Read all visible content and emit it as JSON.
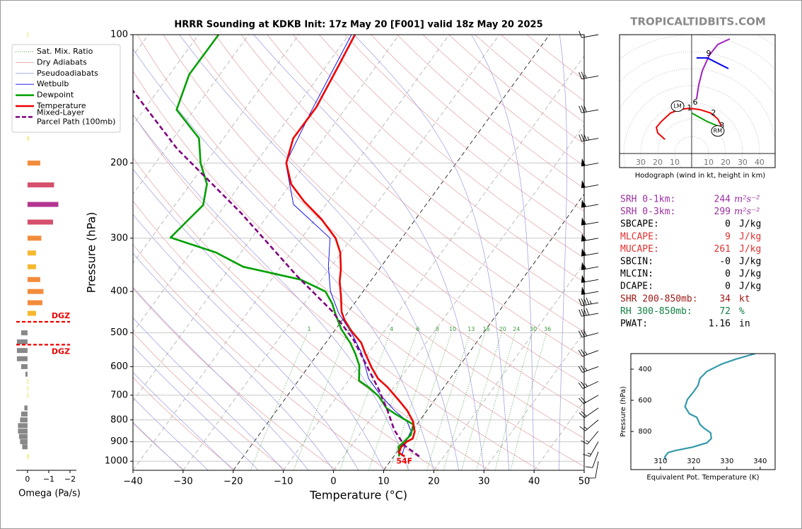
{
  "site": "TROPICALTIDBITS.COM",
  "chart_data": [
    {
      "type": "skewt",
      "title": "HRRR Sounding at KDKB Init: 17z May 20 [F001] valid 18z May 20 2025",
      "x_label": "Temperature (°C)",
      "y_label": "Pressure (hPa)",
      "xlim": [
        -40,
        50
      ],
      "ylim": [
        1050,
        100
      ],
      "log_y": true,
      "xticks": [
        {
          "value": -40,
          "label": "−40"
        },
        {
          "value": -30,
          "label": "−30"
        },
        {
          "value": -20,
          "label": "−20"
        },
        {
          "value": -10,
          "label": "−10"
        },
        0,
        10,
        20,
        30,
        40,
        50
      ],
      "yticks": [
        100,
        200,
        300,
        400,
        500,
        600,
        700,
        800,
        900,
        1000
      ],
      "reference_lines": [
        {
          "name": "Sat. Mix. Ratio",
          "color": "#3a9a3a",
          "style": "dotted"
        },
        {
          "name": "Dry Adiabats",
          "color": "#e3a0a0",
          "style": "solid"
        },
        {
          "name": "Pseudoadiabats",
          "color": "#9a9ae0",
          "style": "solid"
        }
      ],
      "mixing_ratios": [
        1,
        2,
        4,
        6,
        8,
        10,
        13,
        16,
        20,
        24,
        30,
        36
      ],
      "series": [
        {
          "name": "Wetbulb",
          "color": "#0000ee",
          "style": "thin",
          "pressure": [
            100,
            150,
            200,
            250,
            300,
            350,
            400,
            450,
            500,
            560,
            640,
            700,
            760,
            805,
            850,
            900,
            974
          ],
          "values": [
            -59.5,
            -56.5,
            -54,
            -46.5,
            -34.3,
            -30.5,
            -26.5,
            -21.7,
            -16.3,
            -11.2,
            -6.3,
            -1.5,
            3.5,
            7.5,
            9.8,
            10.3,
            11.6
          ]
        },
        {
          "name": "Dewpoint",
          "color": "#00a000",
          "style": "solid",
          "pressure": [
            100,
            124,
            150,
            175,
            200,
            224,
            251,
            276,
            299,
            324,
            350,
            375,
            400,
            428,
            450,
            490,
            528,
            560,
            597,
            647,
            672,
            704,
            751,
            774,
            820,
            868,
            926,
            974
          ],
          "values": [
            -86,
            -86.1,
            -83.5,
            -74.9,
            -71,
            -66.7,
            -64.4,
            -65.4,
            -66.2,
            -55,
            -47.5,
            -34.2,
            -27.5,
            -24.3,
            -22.4,
            -18.9,
            -15.1,
            -12.5,
            -10,
            -7.9,
            -4.9,
            -1.7,
            1.6,
            4.1,
            9.3,
            10.3,
            9.6,
            11.1
          ]
        },
        {
          "name": "Temperature",
          "color": "#ee0000",
          "style": "solid",
          "pressure": [
            100,
            121,
            148,
            175,
            200,
            224,
            246,
            271,
            300,
            324,
            354,
            379,
            412,
            447,
            466,
            495,
            528,
            560,
            604,
            640,
            670,
            717,
            760,
            805,
            852,
            885,
            899,
            926,
            955,
            974
          ],
          "values": [
            -58.8,
            -57.4,
            -56,
            -56.1,
            -53.9,
            -49.9,
            -44.8,
            -38.7,
            -33.2,
            -30.2,
            -27.7,
            -26.1,
            -23.6,
            -21.3,
            -19.6,
            -16.6,
            -12.9,
            -10.5,
            -7.2,
            -4.4,
            -1.3,
            2.7,
            6,
            8.7,
            10.6,
            11.2,
            10.5,
            10.1,
            10.5,
            12.2
          ]
        },
        {
          "name": "Mixed-Layer Parcel Path (100mb)",
          "color": "#800080",
          "style": "dashed",
          "pressure": [
            974,
            919,
            845,
            760,
            677,
            604,
            519,
            445,
            368,
            261,
            185,
            135
          ],
          "values": [
            15.1,
            10.6,
            6.3,
            2.1,
            -2.8,
            -8,
            -14.9,
            -23.3,
            -35.4,
            -55.9,
            -77.8,
            -95.1
          ]
        }
      ],
      "surface_label": "54F",
      "winds": {
        "pressure": [
          100,
          125,
          150,
          175,
          200,
          225,
          250,
          275,
          300,
          325,
          350,
          375,
          400,
          425,
          450,
          500,
          550,
          600,
          650,
          700,
          750,
          800,
          850,
          900,
          950,
          1000
        ],
        "speed": [
          10,
          25,
          30,
          35,
          50,
          50,
          55,
          55,
          55,
          55,
          55,
          50,
          50,
          45,
          40,
          30,
          25,
          25,
          25,
          20,
          20,
          15,
          15,
          15,
          10,
          10
        ],
        "direction": [
          260,
          260,
          260,
          260,
          260,
          260,
          260,
          260,
          260,
          260,
          260,
          260,
          260,
          260,
          260,
          255,
          250,
          250,
          245,
          240,
          235,
          230,
          220,
          210,
          200,
          190
        ]
      }
    },
    {
      "type": "omega",
      "x_label": "Omega (Pa/s)",
      "xlim": [
        0.53,
        -2.3
      ],
      "ylim": [
        1050,
        100
      ],
      "xticks": [
        0,
        {
          "value": -1,
          "label": "−1"
        },
        {
          "value": -2,
          "label": "−2"
        }
      ],
      "pressure": [
        100,
        175,
        200,
        225,
        250,
        275,
        300,
        325,
        350,
        375,
        400,
        425,
        450,
        500,
        525,
        550,
        575,
        600,
        625,
        650,
        675,
        700,
        750,
        775,
        800,
        825,
        850,
        875,
        900,
        925,
        975
      ],
      "values": [
        -0.02,
        -0.05,
        -0.6,
        -1.25,
        -1.45,
        -1.2,
        -0.65,
        -0.4,
        -0.4,
        -0.6,
        -0.75,
        -0.7,
        -0.4,
        0.3,
        0.5,
        0.5,
        0.5,
        0.3,
        0.1,
        -0.03,
        -0.03,
        -0.03,
        0.15,
        0.3,
        0.35,
        0.45,
        0.45,
        0.4,
        0.35,
        0.25,
        -0.05
      ],
      "dgz": {
        "pressure": [
          471,
          533
        ],
        "label": "DGZ",
        "color": "#ee0000"
      }
    },
    {
      "type": "hodograph",
      "caption": "Hodograph (wind in kt, height in km)",
      "xlim": [
        -42.5,
        49.2
      ],
      "ylim": [
        -8.3,
        70
      ],
      "xticks": [
        {
          "value": -30,
          "label": "30"
        },
        {
          "value": -20,
          "label": "20"
        },
        {
          "value": -10,
          "label": "10"
        },
        10,
        20,
        30,
        40
      ],
      "segments": [
        {
          "color": "#ee0000",
          "u": [
            -15.8,
            -20,
            -20.8,
            -17.9,
            -12.5,
            -7.5,
            -1.3,
            5,
            11.3,
            15.4,
            17.5
          ],
          "v": [
            8.3,
            12.1,
            15.4,
            18.8,
            23.8,
            25.8,
            26.7,
            25.8,
            23.8,
            20.4,
            16.3
          ]
        },
        {
          "color": "#00a000",
          "u": [
            0,
            9.2,
            17.5
          ],
          "v": [
            23.8,
            18.8,
            15.4
          ]
        },
        {
          "color": "#a020c0",
          "u": [
            2.9,
            4.2,
            6.3,
            10.4,
            15.4,
            22.5
          ],
          "v": [
            32.1,
            40.4,
            48.8,
            57.9,
            64.2,
            67.5
          ]
        },
        {
          "color": "#0000ee",
          "u": [
            21.7,
            9.2,
            2.9
          ],
          "v": [
            50,
            56.3,
            56.3
          ]
        }
      ],
      "height_labels": [
        {
          "text": "1",
          "u": -1.3,
          "v": 26.7
        },
        {
          "text": "2",
          "u": 12.9,
          "v": 23.8
        },
        {
          "text": "3",
          "u": 17.9,
          "v": 16.3
        },
        {
          "text": "6",
          "u": 2.1,
          "v": 30
        },
        {
          "text": "9",
          "u": 10,
          "v": 58.8
        }
      ],
      "storm_motion": [
        {
          "label": "LM",
          "u": -8.3,
          "v": 27.9
        },
        {
          "label": "RM",
          "u": 15.4,
          "v": 13.3
        }
      ]
    },
    {
      "type": "profile",
      "x_label": "Equivalent Pot. Temperature (K)",
      "y_label": "Pressure (hPa)",
      "xlim": [
        301.1,
        344.5
      ],
      "ylim": [
        1045,
        300
      ],
      "color": "#3399aa",
      "xticks": [
        310,
        320,
        330,
        340
      ],
      "yticks": [
        400,
        600,
        800
      ],
      "pressure": [
        300,
        336,
        368,
        414,
        459,
        505,
        550,
        595,
        641,
        686,
        709,
        755,
        777,
        809,
        845,
        873,
        900,
        923,
        936,
        964,
        982
      ],
      "values": [
        338.5,
        332.6,
        328.3,
        324,
        321.9,
        321.3,
        319.8,
        318.1,
        317.4,
        318.7,
        320.9,
        321.9,
        323,
        325.1,
        325.3,
        324,
        319.8,
        314.5,
        312.3,
        311.3,
        311.7
      ]
    }
  ],
  "stats": [
    {
      "label": "SRH 0-1km:",
      "value": "244",
      "unit": "m²s⁻²",
      "color": "#9b30a0"
    },
    {
      "label": "SRH 0-3km:",
      "value": "299",
      "unit": "m²s⁻²",
      "color": "#9b30a0"
    },
    {
      "label": "SBCAPE:",
      "value": "0",
      "unit": "J/kg",
      "color": "#000000"
    },
    {
      "label": "MLCAPE:",
      "value": "9",
      "unit": "J/kg",
      "color": "#e03030"
    },
    {
      "label": "MUCAPE:",
      "value": "261",
      "unit": "J/kg",
      "color": "#e03030"
    },
    {
      "label": "SBCIN:",
      "value": "-0",
      "unit": "J/kg",
      "color": "#000000"
    },
    {
      "label": "MLCIN:",
      "value": "0",
      "unit": "J/kg",
      "color": "#000000"
    },
    {
      "label": "DCAPE:",
      "value": "0",
      "unit": "J/kg",
      "color": "#000000"
    },
    {
      "label": "SHR 200-850mb:",
      "value": "34",
      "unit": "kt",
      "color": "#a01818"
    },
    {
      "label": "RH 300-850mb:",
      "value": "72",
      "unit": "%",
      "color": "#108040"
    },
    {
      "label": "PWAT:",
      "value": "1.16",
      "unit": "in",
      "color": "#000000"
    }
  ]
}
